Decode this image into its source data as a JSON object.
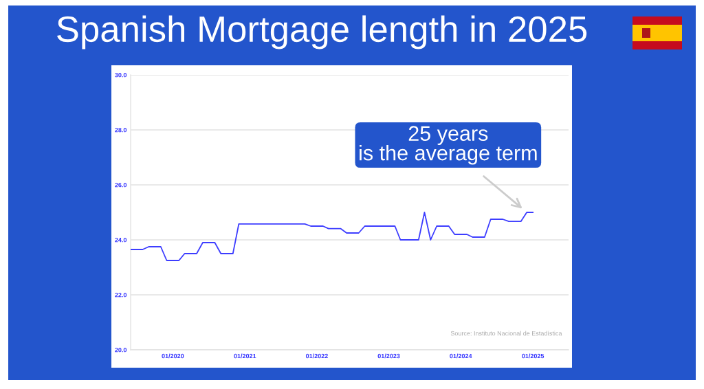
{
  "chart_data": {
    "type": "line",
    "title": "Spanish Mortgage length in 2025",
    "x": [
      "2019-06",
      "2019-08",
      "2019-09",
      "2019-11",
      "2019-12",
      "2020-02",
      "2020-03",
      "2020-05",
      "2020-06",
      "2020-08",
      "2020-09",
      "2020-11",
      "2020-12",
      "2021-11",
      "2021-12",
      "2022-02",
      "2022-03",
      "2022-05",
      "2022-06",
      "2022-08",
      "2022-09",
      "2023-02",
      "2023-03",
      "2023-06",
      "2023-07",
      "2023-08",
      "2023-09",
      "2023-11",
      "2023-12",
      "2024-02",
      "2024-03",
      "2024-05",
      "2024-06",
      "2024-08",
      "2024-09",
      "2024-11",
      "2024-12",
      "2025-01"
    ],
    "values": [
      23.65,
      23.65,
      23.75,
      23.75,
      23.25,
      23.25,
      23.5,
      23.5,
      23.9,
      23.9,
      23.5,
      23.5,
      24.58,
      24.58,
      24.5,
      24.5,
      24.41,
      24.41,
      24.25,
      24.25,
      24.5,
      24.5,
      24.0,
      24.0,
      25.0,
      24.0,
      24.5,
      24.5,
      24.2,
      24.2,
      24.1,
      24.1,
      24.75,
      24.75,
      24.67,
      24.67,
      25.0,
      25.0
    ],
    "color": "#3d3dff",
    "xlim": [
      "2019-06",
      "2025-07"
    ],
    "xticks": [
      {
        "value": "2020-01",
        "label": "01/2020"
      },
      {
        "value": "2021-01",
        "label": "01/2021"
      },
      {
        "value": "2022-01",
        "label": "01/2022"
      },
      {
        "value": "2023-01",
        "label": "01/2023"
      },
      {
        "value": "2024-01",
        "label": "01/2024"
      },
      {
        "value": "2025-01",
        "label": "01/2025"
      }
    ],
    "ylim": [
      20,
      30
    ],
    "yticks": [
      {
        "value": 20,
        "label": "20.0"
      },
      {
        "value": 22,
        "label": "22.0"
      },
      {
        "value": 24,
        "label": "24.0"
      },
      {
        "value": 26,
        "label": "26.0"
      },
      {
        "value": 28,
        "label": "28.0"
      },
      {
        "value": 30,
        "label": "30.0"
      }
    ],
    "grid": "y",
    "annotations": [
      {
        "text": "25 years\nis the average term",
        "x": "2024-12",
        "y": 25.0
      },
      "Source: Instituto Nacional de Estadística"
    ]
  }
}
